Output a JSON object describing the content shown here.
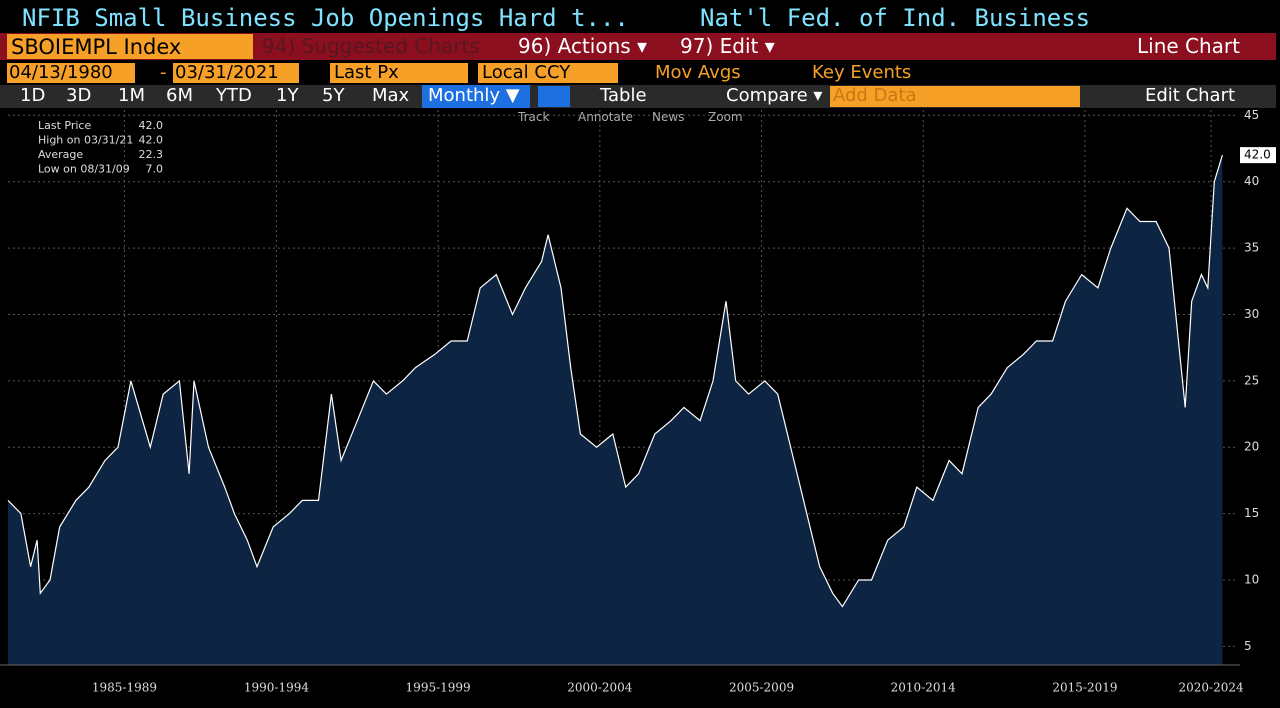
{
  "header": {
    "title": "NFIB Small Business Job Openings Hard t...",
    "source": "Nat'l Fed. of Ind. Business"
  },
  "toolbar": {
    "ticker": "SBOIEMPL Index",
    "suggested": "94) Suggested Charts",
    "actions": "96) Actions ▾",
    "edit": "97) Edit ▾",
    "chart_kind": "Line Chart"
  },
  "settings": {
    "start": "04/13/1980",
    "dash": "-",
    "end": "03/31/2021",
    "field": "Last Px",
    "currency": "Local CCY",
    "mov_avgs": "Mov Avgs",
    "key_events": "Key Events"
  },
  "periods": [
    "1D",
    "3D",
    "1M",
    "6M",
    "YTD",
    "1Y",
    "5Y",
    "Max"
  ],
  "frequency": "Monthly ▼",
  "table": "Table",
  "compare": "Compare ▾",
  "add_data": "Add Data",
  "edit_chart": "Edit Chart",
  "tools": [
    "Track",
    "Annotate",
    "News",
    "Zoom"
  ],
  "legend": [
    [
      "Last Price",
      "42.0"
    ],
    [
      "High on 03/31/21",
      "42.0"
    ],
    [
      "Average",
      "22.3"
    ],
    [
      "Low on 08/31/09",
      "7.0"
    ]
  ],
  "chart_data": {
    "type": "line",
    "last_label": "42.0",
    "x": [
      1983.7,
      1984.1,
      1984.4,
      1984.6,
      1984.7,
      1985.0,
      1985.3,
      1985.8,
      1986.2,
      1986.7,
      1987.1,
      1987.5,
      1988.1,
      1988.5,
      1989.0,
      1989.3,
      1989.45,
      1989.9,
      1990.4,
      1990.7,
      1991.1,
      1991.4,
      1991.9,
      1992.4,
      1992.8,
      1993.3,
      1993.7,
      1994.0,
      1994.5,
      1995.0,
      1995.4,
      1995.9,
      1996.3,
      1996.9,
      1997.4,
      1997.9,
      1998.3,
      1998.8,
      1999.3,
      1999.7,
      2000.2,
      2000.4,
      2000.8,
      2001.1,
      2001.4,
      2001.9,
      2002.4,
      2002.8,
      2003.2,
      2003.7,
      2004.2,
      2004.6,
      2005.1,
      2005.5,
      2005.9,
      2006.2,
      2006.6,
      2007.1,
      2007.5,
      2008.0,
      2008.5,
      2008.8,
      2009.2,
      2009.5,
      2010.0,
      2010.4,
      2010.9,
      2011.4,
      2011.8,
      2012.3,
      2012.8,
      2013.2,
      2013.7,
      2014.1,
      2014.6,
      2015.1,
      2015.5,
      2016.0,
      2016.4,
      2016.9,
      2017.4,
      2017.8,
      2018.3,
      2018.7,
      2019.2,
      2019.6,
      2020.1,
      2020.3,
      2020.6,
      2020.8,
      2021.0,
      2021.25
    ],
    "series": [
      {
        "name": "Last Price",
        "color": "#ffffff",
        "values": [
          16,
          15,
          11,
          13,
          9,
          10,
          14,
          16,
          17,
          19,
          20,
          25,
          20,
          24,
          25,
          18,
          25,
          20,
          17,
          15,
          13,
          11,
          14,
          15,
          16,
          16,
          24,
          19,
          22,
          25,
          24,
          25,
          26,
          27,
          28,
          28,
          32,
          33,
          30,
          32,
          34,
          36,
          32,
          26,
          21,
          20,
          21,
          17,
          18,
          21,
          22,
          23,
          22,
          25,
          31,
          25,
          24,
          25,
          24,
          19,
          14,
          11,
          9,
          8,
          10,
          10,
          13,
          14,
          17,
          16,
          19,
          18,
          23,
          24,
          26,
          27,
          28,
          28,
          31,
          33,
          32,
          35,
          38,
          37,
          37,
          35,
          23,
          31,
          33,
          32,
          40,
          42
        ]
      }
    ],
    "xlim": [
      1983.7,
      2021.3
    ],
    "ylim": [
      3.6,
      45.4
    ],
    "yticks": [
      5,
      10,
      15,
      20,
      25,
      30,
      35,
      40,
      45
    ],
    "xticks": [
      {
        "value": 1987.3,
        "label": "1985-1989"
      },
      {
        "value": 1992.0,
        "label": "1990-1994"
      },
      {
        "value": 1997.0,
        "label": "1995-1999"
      },
      {
        "value": 2002.0,
        "label": "2000-2004"
      },
      {
        "value": 2007.0,
        "label": "2005-2009"
      },
      {
        "value": 2012.0,
        "label": "2010-2014"
      },
      {
        "value": 2017.0,
        "label": "2015-2019"
      },
      {
        "value": 2020.9,
        "label": "2020-2024"
      }
    ],
    "grid": true
  }
}
